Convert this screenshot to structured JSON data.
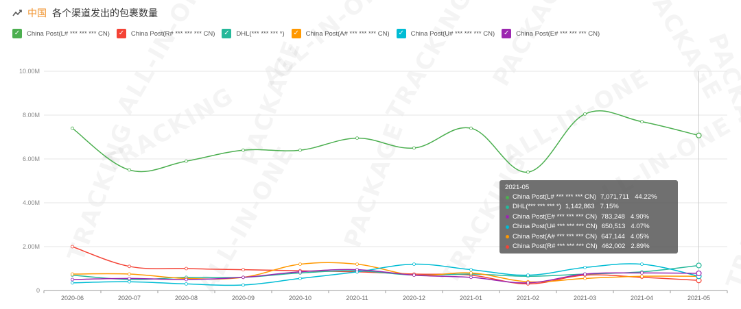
{
  "header": {
    "region": "中国",
    "title": "各个渠道发出的包裹数量",
    "icon": "trend-line-icon"
  },
  "colors": {
    "region": "#f0922b",
    "axis": "#888888",
    "grid": "#e6e6e6"
  },
  "watermark": {
    "words": [
      "ALL-IN-ONE",
      "PACKAGE",
      "TRACKING"
    ]
  },
  "chart_data": {
    "type": "line",
    "categories": [
      "2020-06",
      "2020-07",
      "2020-08",
      "2020-09",
      "2020-10",
      "2020-11",
      "2020-12",
      "2021-01",
      "2021-02",
      "2021-03",
      "2021-04",
      "2021-05"
    ],
    "ylim": [
      0,
      10000000
    ],
    "yticks": [
      {
        "value": 0,
        "label": "0"
      },
      {
        "value": 2000000,
        "label": "2.00M"
      },
      {
        "value": 4000000,
        "label": "4.00M"
      },
      {
        "value": 6000000,
        "label": "6.00M"
      },
      {
        "value": 8000000,
        "label": "8.00M"
      },
      {
        "value": 10000000,
        "label": "10.00M"
      }
    ],
    "grid": true,
    "legend_position": "top-left",
    "series": [
      {
        "name": "China Post(L# *** *** *** CN)",
        "color": "#4caf50",
        "checked": true,
        "values": [
          7400000,
          5500000,
          5900000,
          6400000,
          6400000,
          6950000,
          6500000,
          7400000,
          5400000,
          8050000,
          7700000,
          7071711
        ]
      },
      {
        "name": "China Post(R# *** *** *** CN)",
        "color": "#f44336",
        "checked": true,
        "values": [
          2000000,
          1100000,
          1000000,
          950000,
          900000,
          850000,
          750000,
          700000,
          300000,
          700000,
          600000,
          462002
        ]
      },
      {
        "name": "DHL(*** *** *** *)",
        "color": "#26b89a",
        "checked": true,
        "values": [
          700000,
          500000,
          600000,
          600000,
          800000,
          900000,
          700000,
          750000,
          650000,
          750000,
          850000,
          1142863
        ]
      },
      {
        "name": "China Post(A# *** *** *** CN)",
        "color": "#ff9800",
        "checked": true,
        "values": [
          750000,
          750000,
          550000,
          600000,
          1200000,
          1200000,
          700000,
          800000,
          400000,
          550000,
          650000,
          647144
        ]
      },
      {
        "name": "China Post(U# *** *** *** CN)",
        "color": "#00bcd4",
        "checked": true,
        "values": [
          350000,
          400000,
          300000,
          250000,
          550000,
          850000,
          1200000,
          950000,
          700000,
          1050000,
          1200000,
          650513
        ]
      },
      {
        "name": "China Post(E# *** *** *** CN)",
        "color": "#9c27b0",
        "checked": true,
        "values": [
          500000,
          550000,
          500000,
          600000,
          850000,
          950000,
          700000,
          600000,
          350000,
          750000,
          800000,
          783248
        ]
      }
    ],
    "tooltip": {
      "title": "2021-05",
      "rows": [
        {
          "name": "China Post(L# *** *** *** CN)",
          "value": "7,071,711",
          "percent": "44.22%",
          "color": "#4caf50"
        },
        {
          "name": "DHL(*** *** *** *)",
          "value": "1,142,863",
          "percent": "7.15%",
          "color": "#26b89a"
        },
        {
          "name": "China Post(E# *** *** *** CN)",
          "value": "783,248",
          "percent": "4.90%",
          "color": "#9c27b0"
        },
        {
          "name": "China Post(U# *** *** *** CN)",
          "value": "650,513",
          "percent": "4.07%",
          "color": "#00bcd4"
        },
        {
          "name": "China Post(A# *** *** *** CN)",
          "value": "647,144",
          "percent": "4.05%",
          "color": "#ff9800"
        },
        {
          "name": "China Post(R# *** *** *** CN)",
          "value": "462,002",
          "percent": "2.89%",
          "color": "#f44336"
        }
      ]
    }
  }
}
